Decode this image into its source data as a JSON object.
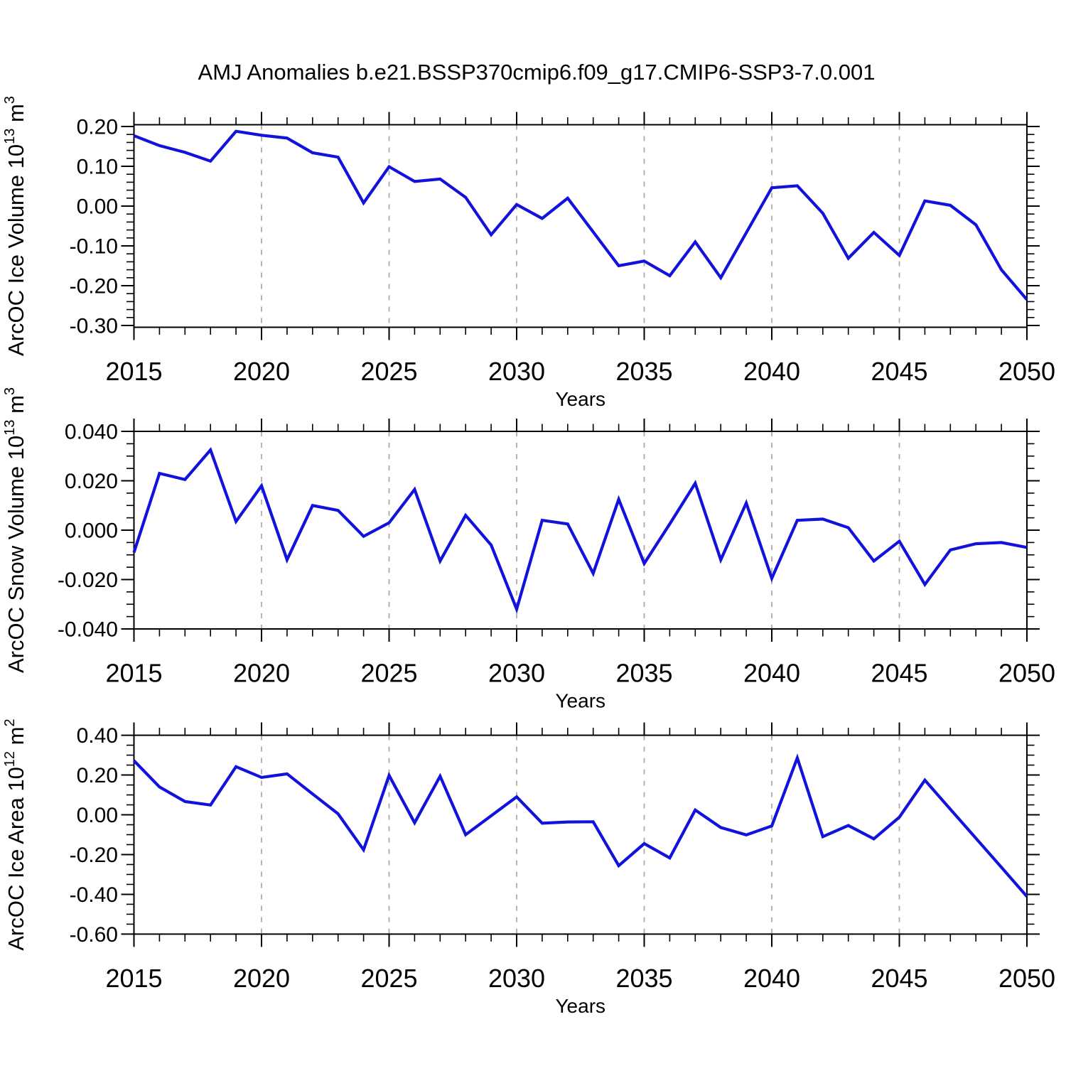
{
  "title": "AMJ Anomalies b.e21.BSSP370cmip6.f09_g17.CMIP6-SSP3-7.0.001",
  "colors": {
    "line": "#1212dd",
    "frame": "#000000",
    "gridline": "#ababab",
    "text": "#000000",
    "background": "#ffffff"
  },
  "x_axis": {
    "label": "Years",
    "start": 2015,
    "end": 2050,
    "major_tick_step": 5,
    "minor_tick_step": 1,
    "gridline_years": [
      2020,
      2025,
      2030,
      2035,
      2040,
      2045
    ],
    "tick_labels": [
      "2015",
      "2020",
      "2025",
      "2030",
      "2035",
      "2040",
      "2045",
      "2050"
    ]
  },
  "years": [
    2015,
    2016,
    2017,
    2018,
    2019,
    2020,
    2021,
    2022,
    2023,
    2024,
    2025,
    2026,
    2027,
    2028,
    2029,
    2030,
    2031,
    2032,
    2033,
    2034,
    2035,
    2036,
    2037,
    2038,
    2039,
    2040,
    2041,
    2042,
    2043,
    2044,
    2045,
    2046,
    2047,
    2048,
    2049,
    2050
  ],
  "chart_data": [
    {
      "type": "line",
      "name": "ice-volume",
      "ylabel_text": "ArcOC Ice Volume 10^13 m^3",
      "ylabel_parts": [
        {
          "t": "ArcOC Ice Volume 10"
        },
        {
          "t": "13",
          "sup": true
        },
        {
          "t": " m"
        },
        {
          "t": "3",
          "sup": true
        }
      ],
      "xlabel": "Years",
      "ylim": [
        -0.3045,
        0.2045
      ],
      "yticks": [
        {
          "v": 0.2,
          "t": "0.20"
        },
        {
          "v": 0.1,
          "t": "0.10"
        },
        {
          "v": 0.0,
          "t": "0.00"
        },
        {
          "v": -0.1,
          "t": "-0.10"
        },
        {
          "v": -0.2,
          "t": "-0.20"
        },
        {
          "v": -0.3,
          "t": "-0.30"
        }
      ],
      "y_minor_step": 0.02,
      "values": [
        0.177,
        0.152,
        0.135,
        0.113,
        0.188,
        0.178,
        0.171,
        0.134,
        0.123,
        0.008,
        0.099,
        0.062,
        0.068,
        0.022,
        -0.072,
        0.004,
        -0.031,
        0.02,
        -0.065,
        -0.15,
        -0.138,
        -0.175,
        -0.09,
        -0.18,
        -0.067,
        0.046,
        0.051,
        -0.018,
        -0.131,
        -0.066,
        -0.124,
        0.013,
        0.002,
        -0.047,
        -0.16,
        -0.235
      ]
    },
    {
      "type": "line",
      "name": "snow-volume",
      "ylabel_text": "ArcOC Snow Volume 10^13 m^3",
      "ylabel_parts": [
        {
          "t": "ArcOC Snow Volume 10"
        },
        {
          "t": "13",
          "sup": true
        },
        {
          "t": " m"
        },
        {
          "t": "3",
          "sup": true
        }
      ],
      "xlabel": "Years",
      "ylim": [
        -0.04,
        0.04
      ],
      "yticks": [
        {
          "v": 0.04,
          "t": "0.040"
        },
        {
          "v": 0.02,
          "t": "0.020"
        },
        {
          "v": 0.0,
          "t": "0.000"
        },
        {
          "v": -0.02,
          "t": "-0.020"
        },
        {
          "v": -0.04,
          "t": "-0.040"
        }
      ],
      "y_minor_step": 0.005,
      "values": [
        -0.009,
        0.023,
        0.0205,
        0.0325,
        0.0035,
        0.018,
        -0.012,
        0.01,
        0.008,
        -0.0025,
        0.003,
        0.0165,
        -0.0125,
        0.006,
        -0.006,
        -0.032,
        0.004,
        0.0025,
        -0.0175,
        0.0125,
        -0.0135,
        0.0025,
        0.019,
        -0.012,
        0.011,
        -0.0195,
        0.004,
        0.0045,
        0.001,
        -0.0125,
        -0.0045,
        -0.022,
        -0.008,
        -0.0055,
        -0.005,
        -0.007
      ]
    },
    {
      "type": "line",
      "name": "ice-area",
      "ylabel_text": "ArcOC Ice Area 10^12 m^2",
      "ylabel_parts": [
        {
          "t": "ArcOC Ice Area 10"
        },
        {
          "t": "12",
          "sup": true
        },
        {
          "t": " m"
        },
        {
          "t": "2",
          "sup": true
        }
      ],
      "xlabel": "Years",
      "ylim": [
        -0.6,
        0.4
      ],
      "yticks": [
        {
          "v": 0.4,
          "t": "0.40"
        },
        {
          "v": 0.2,
          "t": "0.20"
        },
        {
          "v": 0.0,
          "t": "0.00"
        },
        {
          "v": -0.2,
          "t": "-0.20"
        },
        {
          "v": -0.4,
          "t": "-0.40"
        },
        {
          "v": -0.6,
          "t": "-0.60"
        }
      ],
      "y_minor_step": 0.05,
      "values": [
        0.272,
        0.14,
        0.067,
        0.049,
        0.242,
        0.188,
        0.206,
        0.105,
        0.005,
        -0.176,
        0.198,
        -0.04,
        0.194,
        -0.1,
        -0.005,
        0.09,
        -0.042,
        -0.036,
        -0.035,
        -0.256,
        -0.145,
        -0.217,
        0.024,
        -0.064,
        -0.101,
        -0.056,
        0.286,
        -0.11,
        -0.054,
        -0.121,
        -0.012,
        0.174,
        0.028,
        -0.118,
        -0.264,
        -0.411
      ]
    }
  ]
}
